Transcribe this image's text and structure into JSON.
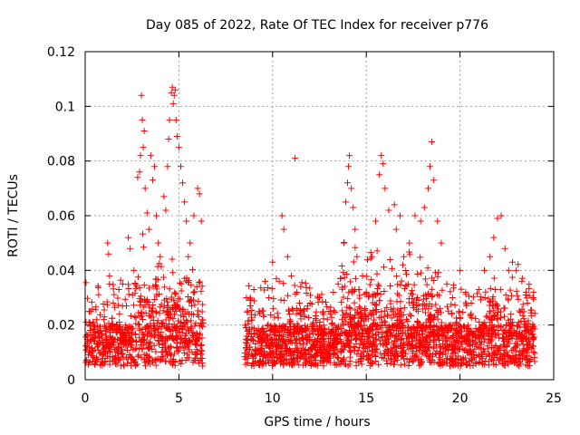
{
  "chart_data": {
    "type": "scatter",
    "title": "Day 085 of 2022, Rate Of TEC Index for receiver p776",
    "xlabel": "GPS time / hours",
    "ylabel": "ROTI / TECUs",
    "xlim": [
      0,
      25
    ],
    "ylim": [
      0,
      0.12
    ],
    "xticks": [
      0,
      5,
      10,
      15,
      20,
      25
    ],
    "xtick_labels": [
      "0",
      "5",
      "10",
      "15",
      "20",
      "25"
    ],
    "yticks": [
      0,
      0.02,
      0.04,
      0.06,
      0.08,
      0.1,
      0.12
    ],
    "ytick_labels": [
      "0",
      "0.02",
      "0.04",
      "0.06",
      "0.08",
      "0.1",
      "0.12"
    ],
    "grid": true,
    "marker": "plus",
    "color": "#ff0000",
    "data_gap_hours": [
      6.3,
      8.5
    ],
    "series": [
      {
        "points": [
          [
            0.1,
            0.012
          ],
          [
            0.2,
            0.021
          ],
          [
            0.3,
            0.025
          ],
          [
            0.5,
            0.015
          ],
          [
            0.8,
            0.018
          ],
          [
            1.0,
            0.022
          ],
          [
            1.2,
            0.05
          ],
          [
            1.25,
            0.046
          ],
          [
            1.3,
            0.038
          ],
          [
            1.5,
            0.028
          ],
          [
            1.8,
            0.033
          ],
          [
            2.0,
            0.035
          ],
          [
            2.2,
            0.027
          ],
          [
            2.3,
            0.052
          ],
          [
            2.4,
            0.048
          ],
          [
            2.6,
            0.04
          ],
          [
            2.8,
            0.074
          ],
          [
            2.9,
            0.076
          ],
          [
            2.95,
            0.082
          ],
          [
            3.0,
            0.104
          ],
          [
            3.05,
            0.095
          ],
          [
            3.1,
            0.085
          ],
          [
            3.15,
            0.091
          ],
          [
            3.2,
            0.07
          ],
          [
            3.3,
            0.061
          ],
          [
            3.4,
            0.055
          ],
          [
            3.5,
            0.082
          ],
          [
            3.6,
            0.073
          ],
          [
            3.7,
            0.078
          ],
          [
            3.8,
            0.06
          ],
          [
            3.9,
            0.05
          ],
          [
            4.0,
            0.045
          ],
          [
            4.2,
            0.067
          ],
          [
            4.3,
            0.062
          ],
          [
            4.4,
            0.078
          ],
          [
            4.45,
            0.088
          ],
          [
            4.5,
            0.095
          ],
          [
            4.6,
            0.105
          ],
          [
            4.65,
            0.107
          ],
          [
            4.7,
            0.101
          ],
          [
            4.75,
            0.104
          ],
          [
            4.8,
            0.106
          ],
          [
            4.85,
            0.095
          ],
          [
            4.9,
            0.089
          ],
          [
            5.0,
            0.085
          ],
          [
            5.1,
            0.078
          ],
          [
            5.2,
            0.072
          ],
          [
            5.3,
            0.065
          ],
          [
            5.4,
            0.058
          ],
          [
            5.5,
            0.045
          ],
          [
            5.6,
            0.05
          ],
          [
            5.8,
            0.06
          ],
          [
            6.0,
            0.07
          ],
          [
            6.1,
            0.068
          ],
          [
            6.2,
            0.058
          ],
          [
            8.6,
            0.03
          ],
          [
            8.8,
            0.027
          ],
          [
            9.0,
            0.033
          ],
          [
            9.3,
            0.025
          ],
          [
            9.6,
            0.036
          ],
          [
            9.8,
            0.03
          ],
          [
            10.0,
            0.043
          ],
          [
            10.2,
            0.037
          ],
          [
            10.5,
            0.06
          ],
          [
            10.6,
            0.055
          ],
          [
            10.8,
            0.045
          ],
          [
            11.0,
            0.038
          ],
          [
            11.2,
            0.081
          ],
          [
            11.3,
            0.032
          ],
          [
            11.5,
            0.034
          ],
          [
            12.0,
            0.028
          ],
          [
            12.5,
            0.03
          ],
          [
            13.0,
            0.025
          ],
          [
            13.5,
            0.035
          ],
          [
            13.8,
            0.05
          ],
          [
            13.9,
            0.065
          ],
          [
            14.0,
            0.072
          ],
          [
            14.05,
            0.078
          ],
          [
            14.1,
            0.082
          ],
          [
            14.2,
            0.07
          ],
          [
            14.3,
            0.063
          ],
          [
            14.4,
            0.055
          ],
          [
            14.5,
            0.045
          ],
          [
            14.8,
            0.038
          ],
          [
            15.0,
            0.032
          ],
          [
            15.3,
            0.045
          ],
          [
            15.5,
            0.058
          ],
          [
            15.7,
            0.075
          ],
          [
            15.8,
            0.082
          ],
          [
            15.9,
            0.079
          ],
          [
            16.0,
            0.07
          ],
          [
            16.2,
            0.062
          ],
          [
            16.5,
            0.064
          ],
          [
            16.6,
            0.055
          ],
          [
            16.8,
            0.06
          ],
          [
            17.0,
            0.045
          ],
          [
            17.3,
            0.05
          ],
          [
            17.6,
            0.06
          ],
          [
            17.9,
            0.058
          ],
          [
            18.1,
            0.063
          ],
          [
            18.3,
            0.07
          ],
          [
            18.4,
            0.078
          ],
          [
            18.5,
            0.087
          ],
          [
            18.6,
            0.073
          ],
          [
            18.8,
            0.058
          ],
          [
            19.0,
            0.05
          ],
          [
            19.3,
            0.035
          ],
          [
            19.6,
            0.03
          ],
          [
            20.0,
            0.04
          ],
          [
            20.3,
            0.032
          ],
          [
            20.6,
            0.028
          ],
          [
            21.0,
            0.033
          ],
          [
            21.3,
            0.04
          ],
          [
            21.6,
            0.045
          ],
          [
            21.8,
            0.052
          ],
          [
            22.0,
            0.059
          ],
          [
            22.2,
            0.06
          ],
          [
            22.4,
            0.048
          ],
          [
            22.6,
            0.04
          ],
          [
            22.8,
            0.043
          ],
          [
            23.0,
            0.04
          ],
          [
            23.3,
            0.036
          ],
          [
            23.6,
            0.028
          ],
          [
            23.9,
            0.03
          ]
        ]
      }
    ]
  }
}
